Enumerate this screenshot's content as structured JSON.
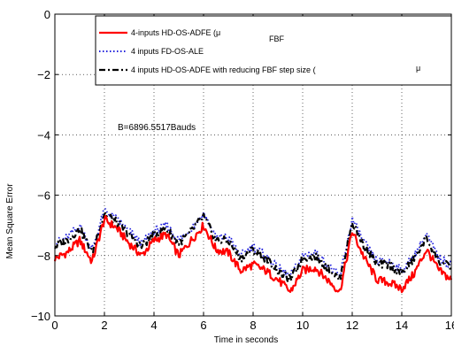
{
  "chart_data": {
    "type": "line",
    "xlabel": "Time in seconds",
    "ylabel": "Mean Square Error",
    "xlim": [
      0,
      16
    ],
    "ylim": [
      -10,
      0
    ],
    "x_ticks": [
      "0",
      "2",
      "4",
      "6",
      "8",
      "10",
      "12",
      "14",
      "16"
    ],
    "y_ticks": [
      "0",
      "−2",
      "−4",
      "−6",
      "−8",
      "−10"
    ],
    "grid": true,
    "legend_position": "top-right",
    "annotation": "B=6896.5517Bauds",
    "x": [
      0,
      0.5,
      1,
      1.5,
      2,
      2.5,
      3,
      3.5,
      4,
      4.5,
      5,
      5.5,
      6,
      6.5,
      7,
      7.5,
      8,
      8.5,
      9,
      9.5,
      10,
      10.5,
      11,
      11.5,
      12,
      12.5,
      13,
      13.5,
      14,
      14.5,
      15,
      15.5,
      16
    ],
    "series": [
      {
        "name": "4-inputs HD-OS-ADFE (μ",
        "subscript": "FBF",
        "color": "#ff0000",
        "style": "solid",
        "values": [
          -8.1,
          -7.9,
          -7.5,
          -8.2,
          -6.8,
          -7.1,
          -7.6,
          -8.0,
          -7.5,
          -7.3,
          -8.0,
          -7.5,
          -7.0,
          -7.8,
          -7.9,
          -8.5,
          -8.3,
          -8.5,
          -8.8,
          -9.2,
          -8.5,
          -8.4,
          -8.8,
          -9.2,
          -7.2,
          -8.1,
          -8.8,
          -8.9,
          -9.1,
          -8.6,
          -7.8,
          -8.5,
          -8.8
        ]
      },
      {
        "name": "4 inputs FD-OS-ALE",
        "color": "#2222dd",
        "style": "dotted",
        "values": [
          -7.6,
          -7.4,
          -7.0,
          -7.8,
          -6.5,
          -6.8,
          -7.2,
          -7.6,
          -7.2,
          -7.0,
          -7.5,
          -7.1,
          -6.6,
          -7.4,
          -7.4,
          -8.0,
          -7.7,
          -8.0,
          -8.4,
          -8.7,
          -8.0,
          -7.9,
          -8.3,
          -8.7,
          -6.8,
          -7.6,
          -8.2,
          -8.2,
          -8.5,
          -8.0,
          -7.3,
          -8.1,
          -8.3
        ]
      },
      {
        "name": "4 inputs HD-OS-ADFE with reducing FBF step size (",
        "subscript": "μ",
        "color": "#000000",
        "style": "dashdot",
        "values": [
          -7.7,
          -7.5,
          -7.1,
          -7.9,
          -6.6,
          -6.9,
          -7.3,
          -7.7,
          -7.3,
          -7.1,
          -7.6,
          -7.2,
          -6.7,
          -7.5,
          -7.5,
          -8.1,
          -7.8,
          -8.1,
          -8.5,
          -8.8,
          -8.1,
          -8.0,
          -8.4,
          -8.8,
          -6.9,
          -7.7,
          -8.3,
          -8.3,
          -8.6,
          -8.1,
          -7.4,
          -8.2,
          -8.4
        ]
      }
    ]
  }
}
